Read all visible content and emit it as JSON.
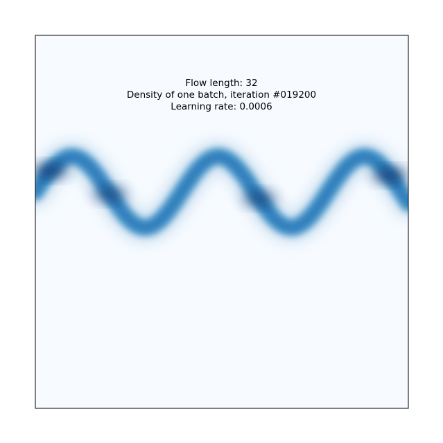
{
  "chart_data": {
    "type": "heatmap",
    "title_lines": [
      "Flow length: 32",
      "Density of one batch, iteration #019200",
      "Learning rate: 0.0006"
    ],
    "xlabel": "",
    "ylabel": "",
    "x_ticks": [],
    "y_ticks": [],
    "grid": false,
    "colormap": "Blues",
    "colors": {
      "background": "#f7fbff",
      "low": "#c6dbef",
      "mid": "#4292c6",
      "high": "#08306b"
    },
    "density_description": "sinusoidal band of samples across the full width",
    "band": {
      "xlim": [
        0,
        1
      ],
      "ylim": [
        0,
        1
      ],
      "center_y": 0.42,
      "amplitude": 0.095,
      "periods": 2.55,
      "phase_deg": 180,
      "width": 0.035
    },
    "hotspots": [
      {
        "x": 0.04,
        "intensity": 1.0
      },
      {
        "x": 0.95,
        "intensity": 1.0
      },
      {
        "x": 0.2,
        "intensity": 0.8
      },
      {
        "x": 0.6,
        "intensity": 0.8
      }
    ]
  }
}
